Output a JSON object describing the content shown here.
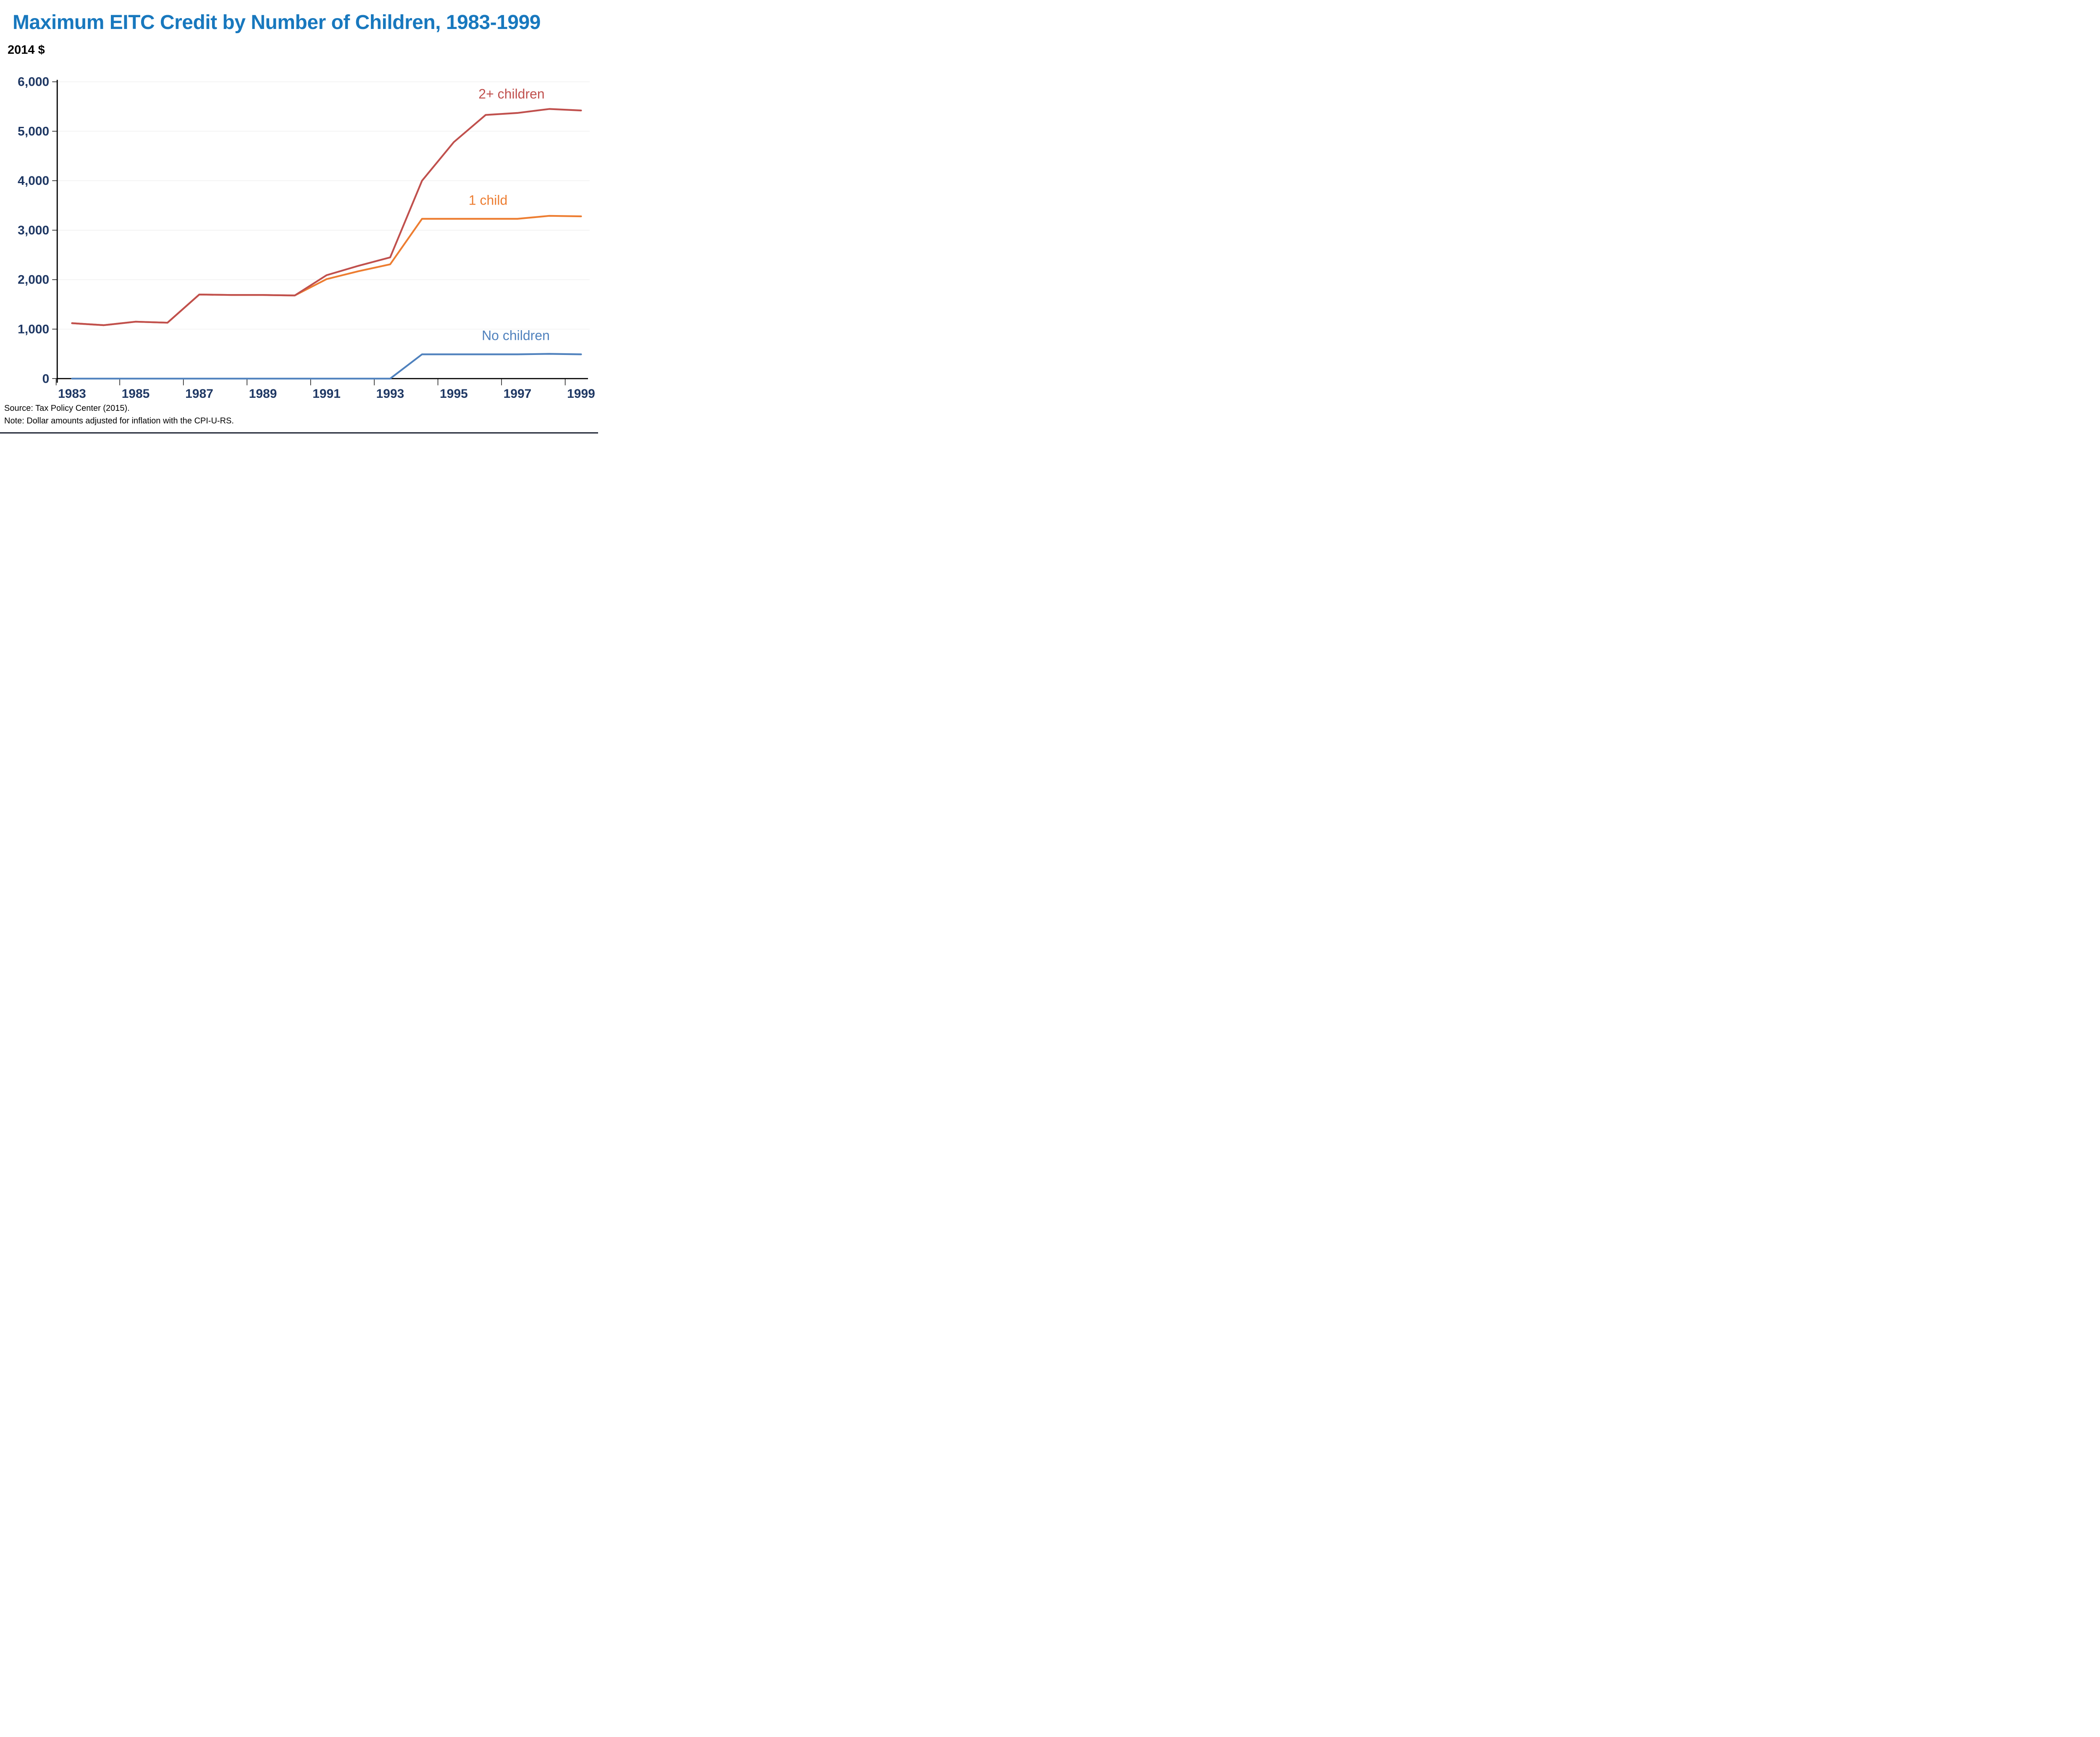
{
  "page": {
    "title": "Maximum EITC Credit by Number of Children, 1983-1999",
    "y_axis_unit_label": "2014 $",
    "source_line": "Source: Tax Policy Center (2015).",
    "note_line": "Note: Dollar amounts adjusted for inflation with the CPI-U-RS."
  },
  "colors": {
    "title_text": "#1878BE",
    "axis_tick_text": "#1F3864",
    "axis_line": "#000000",
    "gridline": "#F1F1F1",
    "footer_text": "#000000",
    "bottom_rule": "#1D2333",
    "series_two_plus_children": "#C0504D",
    "series_one_child": "#ED7D31",
    "series_no_children": "#4F81BD"
  },
  "chart_data": {
    "type": "line",
    "title": "Maximum EITC Credit by Number of Children, 1983-1999",
    "xlabel": "",
    "ylabel": "2014 $",
    "ylim": [
      0,
      6000
    ],
    "grid": "horizontal, very light, at each 1,000",
    "legend": "direct labels next to lines",
    "x": [
      1983,
      1984,
      1985,
      1986,
      1987,
      1988,
      1989,
      1990,
      1991,
      1992,
      1993,
      1994,
      1995,
      1996,
      1997,
      1998,
      1999
    ],
    "x_tick_labels": [
      "1983",
      "1985",
      "1987",
      "1989",
      "1991",
      "1993",
      "1995",
      "1997",
      "1999"
    ],
    "y_ticks": [
      {
        "value": 0,
        "label": "0"
      },
      {
        "value": 1000,
        "label": "1,000"
      },
      {
        "value": 2000,
        "label": "2,000"
      },
      {
        "value": 3000,
        "label": "3,000"
      },
      {
        "value": 4000,
        "label": "4,000"
      },
      {
        "value": 5000,
        "label": "5,000"
      },
      {
        "value": 6000,
        "label": "6,000"
      }
    ],
    "series": [
      {
        "name": "2+ children",
        "color": "#C0504D",
        "values": [
          1120,
          1080,
          1150,
          1130,
          1700,
          1690,
          1690,
          1680,
          2090,
          2280,
          2450,
          4000,
          4780,
          5330,
          5370,
          5450,
          5420
        ]
      },
      {
        "name": "1 child",
        "color": "#ED7D31",
        "values": [
          1120,
          1080,
          1150,
          1130,
          1700,
          1690,
          1690,
          1680,
          2010,
          2170,
          2310,
          3230,
          3230,
          3230,
          3230,
          3290,
          3280
        ]
      },
      {
        "name": "No children",
        "color": "#4F81BD",
        "values": [
          0,
          0,
          0,
          0,
          0,
          0,
          0,
          0,
          0,
          0,
          0,
          490,
          490,
          490,
          490,
          500,
          490
        ]
      }
    ]
  }
}
